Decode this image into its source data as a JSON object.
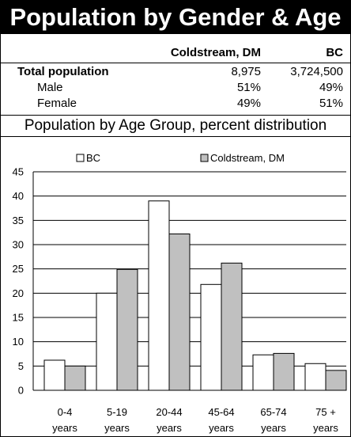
{
  "title": "Population by Gender & Age",
  "table": {
    "headers": [
      "",
      "Coldstream, DM",
      "BC"
    ],
    "rows": [
      {
        "label": "Total population",
        "coldstream": "8,975",
        "bc": "3,724,500"
      },
      {
        "label": "Male",
        "coldstream": "51%",
        "bc": "49%"
      },
      {
        "label": "Female",
        "coldstream": "49%",
        "bc": "51%"
      }
    ]
  },
  "subtitle": "Population by Age Group, percent distribution",
  "chart_data": {
    "type": "bar",
    "categories": [
      [
        "0-4",
        "years"
      ],
      [
        "5-19",
        "years"
      ],
      [
        "20-44",
        "years"
      ],
      [
        "45-64",
        "years"
      ],
      [
        "65-74",
        "years"
      ],
      [
        "75 +",
        "years"
      ]
    ],
    "series": [
      {
        "name": "BC",
        "values": [
          6.2,
          20.0,
          39.0,
          21.8,
          7.3,
          5.5
        ],
        "color": "#ffffff"
      },
      {
        "name": "Coldstream, DM",
        "values": [
          5.0,
          24.9,
          32.2,
          26.2,
          7.6,
          4.1
        ],
        "color": "#c0c0c0"
      }
    ],
    "ylim": [
      0,
      45
    ],
    "yticks": [
      0,
      5,
      10,
      15,
      20,
      25,
      30,
      35,
      40,
      45
    ],
    "grid": true,
    "legend_position": "top"
  }
}
